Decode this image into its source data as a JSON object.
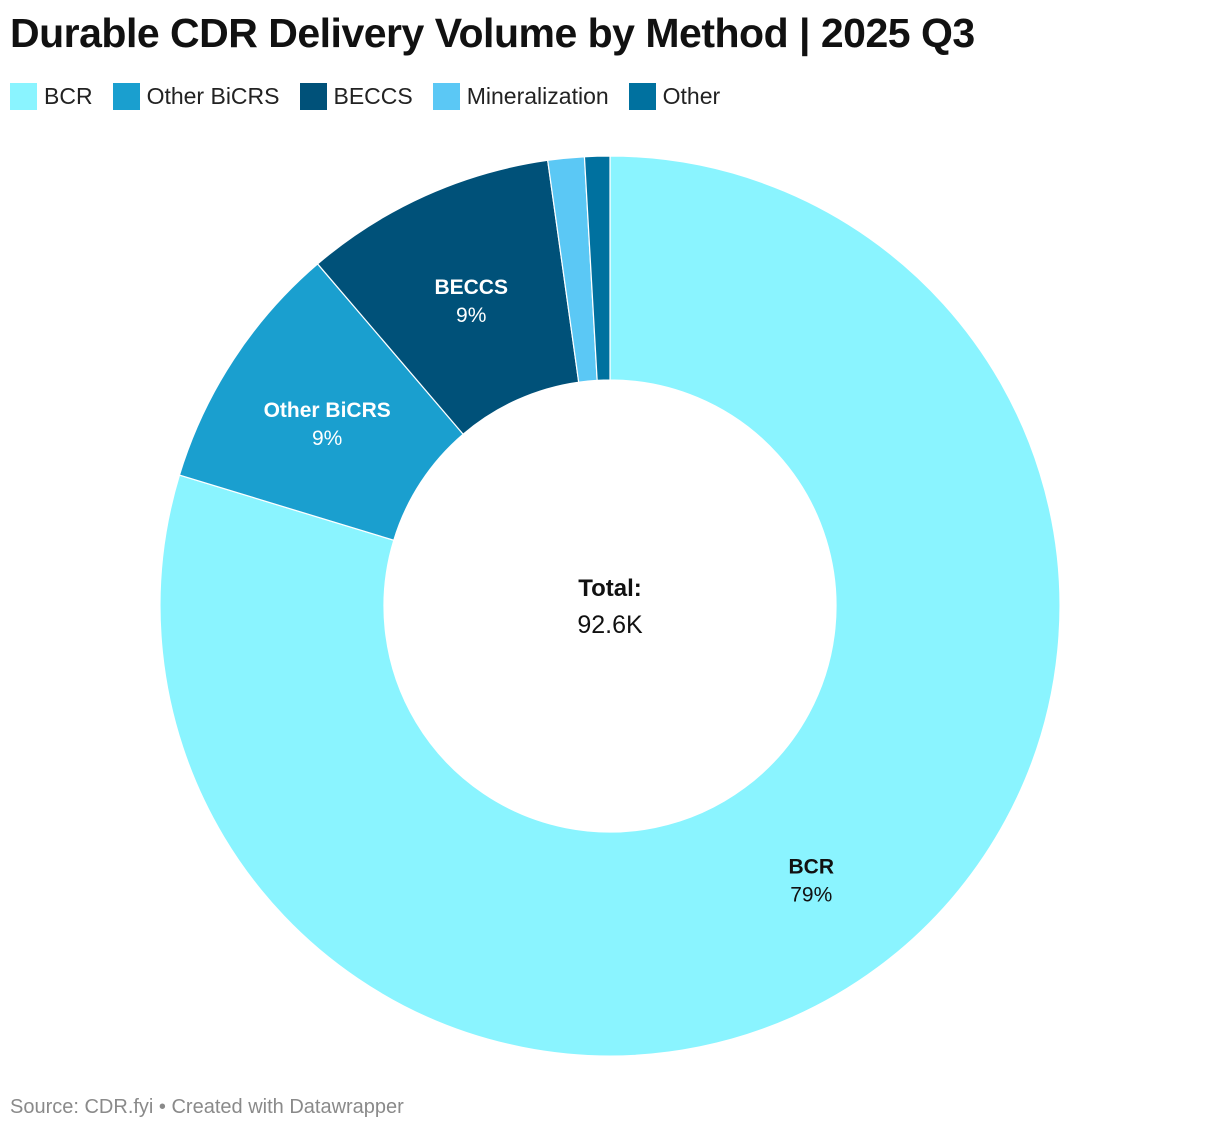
{
  "title": "Durable CDR Delivery Volume by Method | 2025 Q3",
  "footer": {
    "text": "Source: CDR.fyi • Created with Datawrapper"
  },
  "chart_data": {
    "type": "pie",
    "variant": "donut",
    "title": "Durable CDR Delivery Volume by Method | 2025 Q3",
    "center_label": "Total:",
    "center_value": "92.6K",
    "legend_placement": "top-left",
    "slices": [
      {
        "name": "BCR",
        "value": 79.3,
        "label": "79%",
        "color": "#8AF4FF",
        "label_color": "#111111",
        "show_label": true
      },
      {
        "name": "Other BiCRS",
        "value": 9.0,
        "label": "9%",
        "color": "#1A9FCF",
        "label_color": "#ffffff",
        "show_label": true
      },
      {
        "name": "BECCS",
        "value": 9.0,
        "label": "9%",
        "color": "#005179",
        "label_color": "#ffffff",
        "show_label": true
      },
      {
        "name": "Mineralization",
        "value": 1.3,
        "label": "",
        "color": "#5BC8F5",
        "label_color": "#111111",
        "show_label": false
      },
      {
        "name": "Other",
        "value": 0.9,
        "label": "",
        "color": "#00719F",
        "label_color": "#ffffff",
        "show_label": false
      }
    ]
  }
}
